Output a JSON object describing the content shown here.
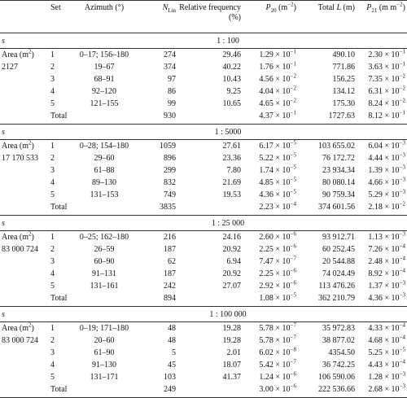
{
  "table": {
    "columns": [
      [
        {
          "text": "Set"
        }
      ],
      [
        {
          "text": "Azimuth (°)"
        }
      ],
      [
        {
          "text": "N",
          "kind": "italic"
        },
        {
          "text": "Lin",
          "kind": "sub"
        }
      ],
      [
        {
          "text": "Relative frequency (%)"
        }
      ],
      [
        {
          "text": "P",
          "kind": "italic"
        },
        {
          "text": "20",
          "kind": "sub"
        },
        {
          "text": " (m"
        },
        {
          "text": "−2",
          "kind": "sup"
        },
        {
          "text": ")"
        }
      ],
      [
        {
          "text": "Total "
        },
        {
          "text": "L",
          "kind": "italic"
        },
        {
          "text": " (m)"
        }
      ],
      [
        {
          "text": "P",
          "kind": "italic"
        },
        {
          "text": "21",
          "kind": "sub"
        },
        {
          "text": " (m m"
        },
        {
          "text": "−2",
          "kind": "sup"
        },
        {
          "text": ")"
        }
      ]
    ],
    "sections": [
      {
        "label": "s",
        "scale": "1 : 100",
        "area_label": [
          {
            "text": "Area (m"
          },
          {
            "text": "2",
            "kind": "sup"
          },
          {
            "text": ")"
          }
        ],
        "area": "2127",
        "rows": [
          [
            "1",
            "0–17; 156–180",
            "274",
            "29.46",
            {
              "base": "1.29 × 10",
              "exp": "−1"
            },
            "490.10",
            {
              "base": "2.30 × 10",
              "exp": "−1"
            }
          ],
          [
            "2",
            "19–67",
            "374",
            "40.22",
            {
              "base": "1.76 × 10",
              "exp": "−1"
            },
            "771.86",
            {
              "base": "3.63 × 10",
              "exp": "−1"
            }
          ],
          [
            "3",
            "68–91",
            "97",
            "10.43",
            {
              "base": "4.56 × 10",
              "exp": "−2"
            },
            "156.25",
            {
              "base": "7.35 × 10",
              "exp": "−2"
            }
          ],
          [
            "4",
            "92–120",
            "86",
            "9.25",
            {
              "base": "4.04 × 10",
              "exp": "−2"
            },
            "134.12",
            {
              "base": "6.31 × 10",
              "exp": "−2"
            }
          ],
          [
            "5",
            "121–155",
            "99",
            "10.65",
            {
              "base": "4.65 × 10",
              "exp": "−2"
            },
            "175.30",
            {
              "base": "8.24 × 10",
              "exp": "−2"
            }
          ]
        ],
        "total": {
          "label": "Total",
          "n": "930",
          "p20": {
            "base": "4.37 × 10",
            "exp": "−1"
          },
          "length": "1727.63",
          "p21": {
            "base": "8.12 × 10",
            "exp": "−1"
          }
        }
      },
      {
        "label": "s",
        "scale": "1 : 5000",
        "area_label": [
          {
            "text": "Area (m"
          },
          {
            "text": "2",
            "kind": "sup"
          },
          {
            "text": ")"
          }
        ],
        "area": "17 170 533",
        "rows": [
          [
            "1",
            "0–28; 154–180",
            "1059",
            "27.61",
            {
              "base": "6.17 × 10",
              "exp": "−5"
            },
            "103 655.02",
            {
              "base": "6.04 × 10",
              "exp": "−3"
            }
          ],
          [
            "2",
            "29–60",
            "896",
            "23.36",
            {
              "base": "5.22 × 10",
              "exp": "−5"
            },
            "76 172.72",
            {
              "base": "4.44 × 10",
              "exp": "−3"
            }
          ],
          [
            "3",
            "61–88",
            "299",
            "7.80",
            {
              "base": "1.74 × 10",
              "exp": "−5"
            },
            "23 934.34",
            {
              "base": "1.39 × 10",
              "exp": "−3"
            }
          ],
          [
            "4",
            "89–130",
            "832",
            "21.69",
            {
              "base": "4.85 × 10",
              "exp": "−5"
            },
            "80 080.14",
            {
              "base": "4.66 × 10",
              "exp": "−3"
            }
          ],
          [
            "5",
            "131–153",
            "749",
            "19.53",
            {
              "base": "4.36 × 10",
              "exp": "−5"
            },
            "90 759.34",
            {
              "base": "5.29 × 10",
              "exp": "−3"
            }
          ]
        ],
        "total": {
          "label": "Total",
          "n": "3835",
          "p20": {
            "base": "2.23 × 10",
            "exp": "−4"
          },
          "length": "374 601.56",
          "p21": {
            "base": "2.18 × 10",
            "exp": "−2"
          }
        }
      },
      {
        "label": "s",
        "scale": "1 : 25 000",
        "area_label": [
          {
            "text": "Area (m"
          },
          {
            "text": "2",
            "kind": "sup"
          },
          {
            "text": ")"
          }
        ],
        "area": "83 000 724",
        "rows": [
          [
            "1",
            "0–25; 162–180",
            "216",
            "24.16",
            {
              "base": "2.60 × 10",
              "exp": "−6"
            },
            "93 912.71",
            {
              "base": "1.13 × 10",
              "exp": "−3"
            }
          ],
          [
            "2",
            "26–59",
            "187",
            "20.92",
            {
              "base": "2.25 × 10",
              "exp": "−6"
            },
            "60 252.45",
            {
              "base": "7.26 × 10",
              "exp": "−4"
            }
          ],
          [
            "3",
            "60–90",
            "62",
            "6.94",
            {
              "base": "7.47 × 10",
              "exp": "−7"
            },
            "20 544.88",
            {
              "base": "2.48 × 10",
              "exp": "−4"
            }
          ],
          [
            "4",
            "91–131",
            "187",
            "20.92",
            {
              "base": "2.25 × 10",
              "exp": "−6"
            },
            "74 024.49",
            {
              "base": "8.92 × 10",
              "exp": "−4"
            }
          ],
          [
            "5",
            "131–161",
            "242",
            "27.07",
            {
              "base": "2.92 × 10",
              "exp": "−6"
            },
            "113 476.26",
            {
              "base": "1.37 × 10",
              "exp": "−3"
            }
          ]
        ],
        "total": {
          "label": "Total",
          "n": "894",
          "p20": {
            "base": "1.08 × 10",
            "exp": "−5"
          },
          "length": "362 210.79",
          "p21": {
            "base": "4.36 × 10",
            "exp": "−3"
          }
        }
      },
      {
        "label": "s",
        "scale": "1 : 100 000",
        "area_label": [
          {
            "text": "Area (m"
          },
          {
            "text": "2",
            "kind": "sup"
          },
          {
            "text": ")"
          }
        ],
        "area": "83 000 724",
        "rows": [
          [
            "1",
            "0–19; 171–180",
            "48",
            "19.28",
            {
              "base": "5.78 × 10",
              "exp": "−7"
            },
            "35 972.83",
            {
              "base": "4.33 × 10",
              "exp": "−4"
            }
          ],
          [
            "2",
            "20–60",
            "48",
            "19.28",
            {
              "base": "5.78 × 10",
              "exp": "−7"
            },
            "38 877.02",
            {
              "base": "4.68 × 10",
              "exp": "−4"
            }
          ],
          [
            "3",
            "61–90",
            "5",
            "2.01",
            {
              "base": "6.02 × 10",
              "exp": "−8"
            },
            "4354.50",
            {
              "base": "5.25 × 10",
              "exp": "−5"
            }
          ],
          [
            "4",
            "91–130",
            "45",
            "18.07",
            {
              "base": "5.42 × 10",
              "exp": "−7"
            },
            "36 742.25",
            {
              "base": "4.43 × 10",
              "exp": "−4"
            }
          ],
          [
            "5",
            "131–171",
            "103",
            "41.37",
            {
              "base": "1.24 × 10",
              "exp": "−6"
            },
            "106 590.06",
            {
              "base": "1.28 × 10",
              "exp": "−3"
            }
          ]
        ],
        "total": {
          "label": "Total",
          "n": "249",
          "p20": {
            "base": "3.00 × 10",
            "exp": "−6"
          },
          "length": "222 536.66",
          "p21": {
            "base": "2.68 × 10",
            "exp": "−3"
          }
        }
      }
    ]
  }
}
